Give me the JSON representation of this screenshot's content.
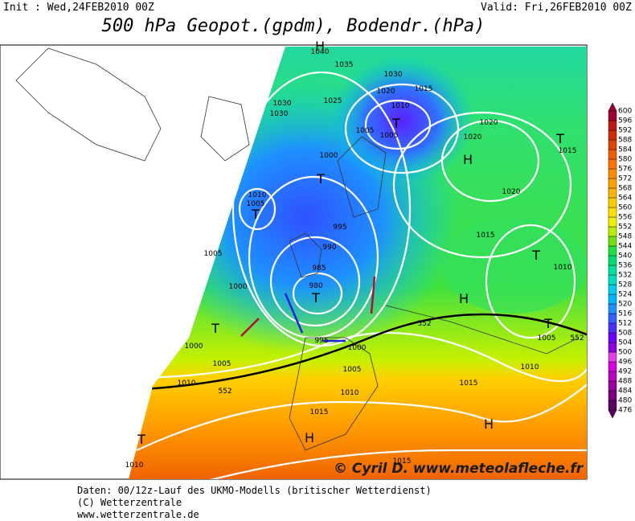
{
  "header": {
    "init": "Init : Wed,24FEB2010 00Z",
    "valid": "Valid: Fri,26FEB2010 00Z",
    "title": "500 hPa Geopot.(gpdm), Bodendr.(hPa)"
  },
  "isobar_labels": [
    1040,
    1035,
    1030,
    1015,
    1020,
    1010,
    1030,
    1030,
    1025,
    1005,
    1005,
    1020,
    1020,
    1015,
    1000,
    1010,
    1005,
    1020,
    1015,
    1005,
    995,
    990,
    985,
    980,
    1000,
    1010,
    552,
    552,
    1005,
    995,
    1000,
    1000,
    1005,
    1005,
    1010,
    1010,
    552,
    1010,
    1015,
    1015,
    1010,
    1015
  ],
  "pressure_centers": [
    "H",
    "T",
    "H",
    "T",
    "T",
    "T",
    "T",
    "H",
    "T",
    "T",
    "T",
    "T",
    "H",
    "H"
  ],
  "colorbar": {
    "levels": [
      476,
      480,
      484,
      488,
      492,
      496,
      500,
      504,
      508,
      512,
      516,
      520,
      524,
      528,
      532,
      536,
      540,
      544,
      548,
      552,
      556,
      560,
      564,
      568,
      572,
      576,
      580,
      584,
      588,
      592,
      596,
      600
    ],
    "colors": [
      "#5c0060",
      "#7a0080",
      "#9a00a0",
      "#b800c0",
      "#d800d8",
      "#e040e8",
      "#8a00e0",
      "#6a00ff",
      "#4a30ff",
      "#3060ff",
      "#2090ff",
      "#00b4ff",
      "#00ccee",
      "#00e0c0",
      "#00e09a",
      "#00e070",
      "#20e040",
      "#70e010",
      "#b8ee00",
      "#f0f000",
      "#ffe000",
      "#ffcc00",
      "#ffb400",
      "#ffa000",
      "#ff8c00",
      "#ff7400",
      "#f05c00",
      "#e04400",
      "#d02c00",
      "#c01818",
      "#a00030"
    ]
  },
  "watermark": "© Cyril D. www.meteolafleche.fr",
  "footer": [
    "Daten: 00/12z-Lauf des UKMO-Modells (britischer Wetterdienst)",
    "(C) Wetterzentrale",
    "www.wetterzentrale.de"
  ]
}
